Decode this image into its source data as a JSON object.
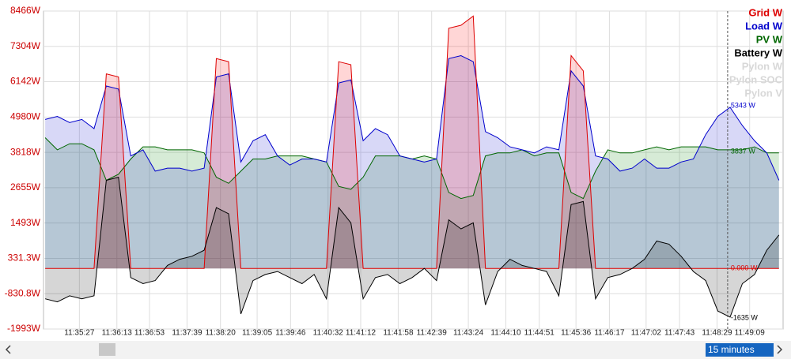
{
  "chart_data": {
    "type": "area",
    "x": [
      "11:34:45",
      "11:35:00",
      "11:35:15",
      "11:35:30",
      "11:35:45",
      "11:36:00",
      "11:36:15",
      "11:36:30",
      "11:36:45",
      "11:37:00",
      "11:37:15",
      "11:37:30",
      "11:37:45",
      "11:38:00",
      "11:38:15",
      "11:38:30",
      "11:38:45",
      "11:39:00",
      "11:39:15",
      "11:39:30",
      "11:39:45",
      "11:40:00",
      "11:40:15",
      "11:40:30",
      "11:40:45",
      "11:41:00",
      "11:41:15",
      "11:41:30",
      "11:41:45",
      "11:42:00",
      "11:42:15",
      "11:42:30",
      "11:42:45",
      "11:43:00",
      "11:43:15",
      "11:43:30",
      "11:43:45",
      "11:44:00",
      "11:44:15",
      "11:44:30",
      "11:44:45",
      "11:45:00",
      "11:45:15",
      "11:45:30",
      "11:45:45",
      "11:46:00",
      "11:46:15",
      "11:46:30",
      "11:46:45",
      "11:47:00",
      "11:47:15",
      "11:47:30",
      "11:47:45",
      "11:48:00",
      "11:48:15",
      "11:48:30",
      "11:48:45",
      "11:49:00",
      "11:49:15",
      "11:49:30",
      "11:49:45"
    ],
    "series": [
      {
        "name": "PV W",
        "color": "#006600",
        "fill": "rgba(0,130,0,0.16)",
        "values": [
          4300,
          3900,
          4100,
          4100,
          3900,
          2900,
          3100,
          3600,
          4000,
          4000,
          3900,
          3900,
          3900,
          3800,
          3000,
          2800,
          3200,
          3600,
          3600,
          3700,
          3700,
          3700,
          3600,
          3500,
          2700,
          2600,
          3000,
          3700,
          3700,
          3700,
          3600,
          3700,
          3600,
          2500,
          2300,
          2400,
          3700,
          3800,
          3800,
          3900,
          3700,
          3800,
          3800,
          2500,
          2300,
          3200,
          3900,
          3800,
          3800,
          3900,
          4000,
          3900,
          4000,
          4000,
          4000,
          3900,
          3900,
          3900,
          4000,
          3800,
          3800
        ]
      },
      {
        "name": "Load W",
        "color": "#0000cc",
        "fill": "rgba(40,40,210,0.18)",
        "values": [
          4900,
          5000,
          4800,
          4900,
          4600,
          6000,
          5900,
          3700,
          3900,
          3200,
          3300,
          3300,
          3200,
          3300,
          6300,
          6400,
          3500,
          4200,
          4400,
          3700,
          3400,
          3600,
          3600,
          3500,
          6100,
          6200,
          4200,
          4600,
          4400,
          3700,
          3600,
          3500,
          3600,
          6900,
          7000,
          6800,
          4500,
          4300,
          4000,
          3900,
          3800,
          4000,
          3900,
          6500,
          6000,
          3700,
          3600,
          3200,
          3300,
          3600,
          3300,
          3300,
          3500,
          3600,
          4400,
          5000,
          5300,
          4700,
          4200,
          3800,
          2900
        ]
      },
      {
        "name": "Grid W",
        "color": "#dd0000",
        "fill": "rgba(255,0,0,0.16)",
        "values": [
          0,
          0,
          0,
          0,
          0,
          6400,
          6300,
          0,
          0,
          0,
          0,
          0,
          0,
          0,
          6900,
          6800,
          0,
          0,
          0,
          0,
          0,
          0,
          0,
          0,
          6800,
          6700,
          0,
          0,
          0,
          0,
          0,
          0,
          0,
          7900,
          8000,
          8300,
          0,
          0,
          0,
          0,
          0,
          0,
          0,
          7000,
          6500,
          0,
          0,
          0,
          0,
          0,
          0,
          0,
          0,
          0,
          0,
          0,
          0,
          0,
          0,
          0,
          0
        ]
      },
      {
        "name": "Battery W",
        "color": "#000000",
        "fill": "rgba(0,0,0,0.16)",
        "values": [
          -1000,
          -1100,
          -900,
          -1000,
          -900,
          2900,
          3000,
          -300,
          -500,
          -400,
          100,
          300,
          400,
          600,
          2000,
          1800,
          -1500,
          -400,
          -200,
          -100,
          -300,
          -500,
          -200,
          -1000,
          2000,
          1500,
          -1000,
          -300,
          -200,
          -500,
          -300,
          0,
          -400,
          1600,
          1300,
          1500,
          -1200,
          -100,
          300,
          100,
          0,
          -100,
          -900,
          2100,
          2200,
          -1000,
          -300,
          -200,
          0,
          300,
          900,
          800,
          400,
          -100,
          -400,
          -1400,
          -1600,
          -500,
          -200,
          600,
          1100
        ]
      }
    ],
    "legend_order": [
      2,
      1,
      0,
      3
    ],
    "legend_hidden": [
      "Pylon W",
      "Pylon SOC",
      "Pylon V"
    ],
    "xlim": [
      "11:34:43",
      "11:49:50"
    ],
    "xticks": [
      "11:35:27",
      "11:36:13",
      "11:36:53",
      "11:37:39",
      "11:38:20",
      "11:39:05",
      "11:39:46",
      "11:40:32",
      "11:41:12",
      "11:41:58",
      "11:42:39",
      "11:43:24",
      "11:44:10",
      "11:44:51",
      "11:45:36",
      "11:46:17",
      "11:47:02",
      "11:47:43",
      "11:48:29",
      "11:49:09"
    ],
    "ylim": [
      -1993,
      8466
    ],
    "yticks": [
      {
        "value": 8466,
        "label": "8466W"
      },
      {
        "value": 7304,
        "label": "7304W"
      },
      {
        "value": 6142,
        "label": "6142W"
      },
      {
        "value": 4980,
        "label": "4980W"
      },
      {
        "value": 3818,
        "label": "3818W"
      },
      {
        "value": 2655,
        "label": "2655W"
      },
      {
        "value": 1493,
        "label": "1493W"
      },
      {
        "value": 331.3,
        "label": "331.3W"
      },
      {
        "value": -830.8,
        "label": "-830.8W"
      },
      {
        "value": -1993,
        "label": "-1993W"
      }
    ],
    "grid": true,
    "cursor": "11:48:42",
    "annotations": [
      {
        "text": "5343 W",
        "y": 5343,
        "color": "#0000cc"
      },
      {
        "text": "3837 W",
        "y": 3837,
        "color": "#006600"
      },
      {
        "text": "0.000 W",
        "y": 0,
        "color": "#dd0000"
      },
      {
        "text": "-1635 W",
        "y": -1635,
        "color": "#000000"
      }
    ],
    "range_selector": "15 minutes"
  }
}
